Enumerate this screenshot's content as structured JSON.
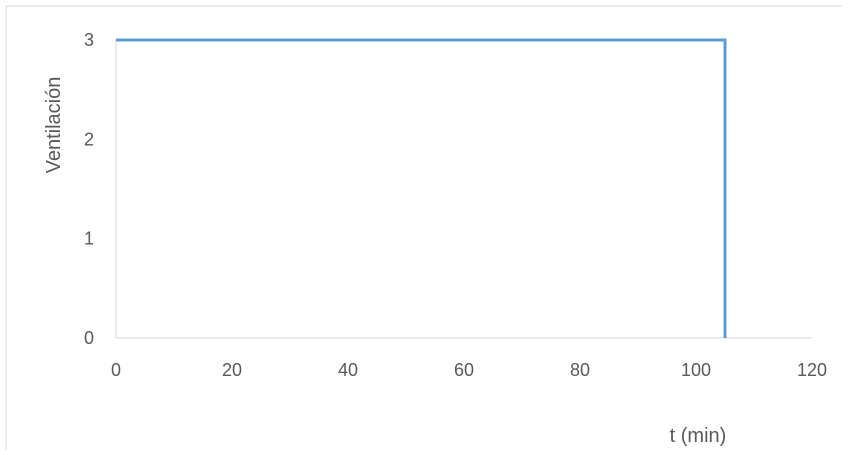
{
  "chart_data": {
    "type": "line",
    "title": "",
    "xlabel": "t (min)",
    "ylabel": "Ventilación",
    "xlim": [
      0,
      120
    ],
    "ylim": [
      0,
      3
    ],
    "x_ticks": [
      0,
      20,
      40,
      60,
      80,
      100,
      120
    ],
    "y_ticks": [
      0,
      1,
      2,
      3
    ],
    "grid": false,
    "legend": "none",
    "series": [
      {
        "color": "#5b9bd5",
        "points": [
          {
            "x": 0,
            "y": 3
          },
          {
            "x": 105,
            "y": 3
          },
          {
            "x": 105,
            "y": 0
          }
        ]
      }
    ]
  },
  "colors": {
    "axis": "#d9d9d9",
    "frame": "#d9d9d9",
    "text": "#595959"
  }
}
